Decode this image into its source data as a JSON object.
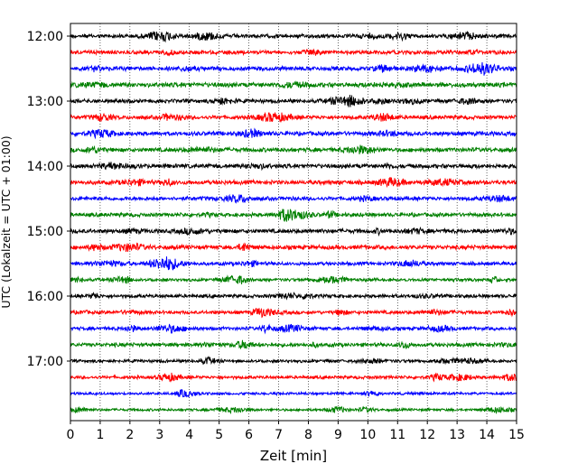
{
  "chart_data": {
    "type": "line",
    "title": "",
    "xlabel": "Zeit  [min]",
    "ylabel": "UTC (Lokalzeit = UTC + 01:00)",
    "xlim": [
      0,
      15
    ],
    "x_ticks": [
      "0",
      "1",
      "2",
      "3",
      "4",
      "5",
      "6",
      "7",
      "8",
      "9",
      "10",
      "11",
      "12",
      "13",
      "14",
      "15"
    ],
    "y_ticks": [
      "12:00",
      "13:00",
      "14:00",
      "15:00",
      "16:00",
      "17:00"
    ],
    "vertical_grid": true,
    "trace_colors": [
      "#000000",
      "#ff0000",
      "#0000ff",
      "#008000"
    ],
    "traces": [
      {
        "start": "12:00",
        "color": "#000000",
        "level": 0.5
      },
      {
        "start": "12:15",
        "color": "#ff0000",
        "level": 0.5
      },
      {
        "start": "12:30",
        "color": "#0000ff",
        "level": 0.6
      },
      {
        "start": "12:45",
        "color": "#008000",
        "level": 0.7
      },
      {
        "start": "13:00",
        "color": "#000000",
        "level": 0.5
      },
      {
        "start": "13:15",
        "color": "#ff0000",
        "level": 0.5
      },
      {
        "start": "13:30",
        "color": "#0000ff",
        "level": 0.6
      },
      {
        "start": "13:45",
        "color": "#008000",
        "level": 0.6
      },
      {
        "start": "14:00",
        "color": "#000000",
        "level": 0.6
      },
      {
        "start": "14:15",
        "color": "#ff0000",
        "level": 0.6
      },
      {
        "start": "14:30",
        "color": "#0000ff",
        "level": 0.5
      },
      {
        "start": "14:45",
        "color": "#008000",
        "level": 0.5
      },
      {
        "start": "15:00",
        "color": "#000000",
        "level": 0.6
      },
      {
        "start": "15:15",
        "color": "#ff0000",
        "level": 0.6
      },
      {
        "start": "15:30",
        "color": "#0000ff",
        "level": 0.4
      },
      {
        "start": "15:45",
        "color": "#008000",
        "level": 0.3
      },
      {
        "start": "16:00",
        "color": "#000000",
        "level": 0.4
      },
      {
        "start": "16:15",
        "color": "#ff0000",
        "level": 0.4
      },
      {
        "start": "16:30",
        "color": "#0000ff",
        "level": 0.4
      },
      {
        "start": "16:45",
        "color": "#008000",
        "level": 0.5
      },
      {
        "start": "17:00",
        "color": "#000000",
        "level": 0.3
      },
      {
        "start": "17:15",
        "color": "#ff0000",
        "level": 0.3
      },
      {
        "start": "17:30",
        "color": "#0000ff",
        "level": 0.15
      },
      {
        "start": "17:45",
        "color": "#008000",
        "level": 0.15
      }
    ]
  }
}
